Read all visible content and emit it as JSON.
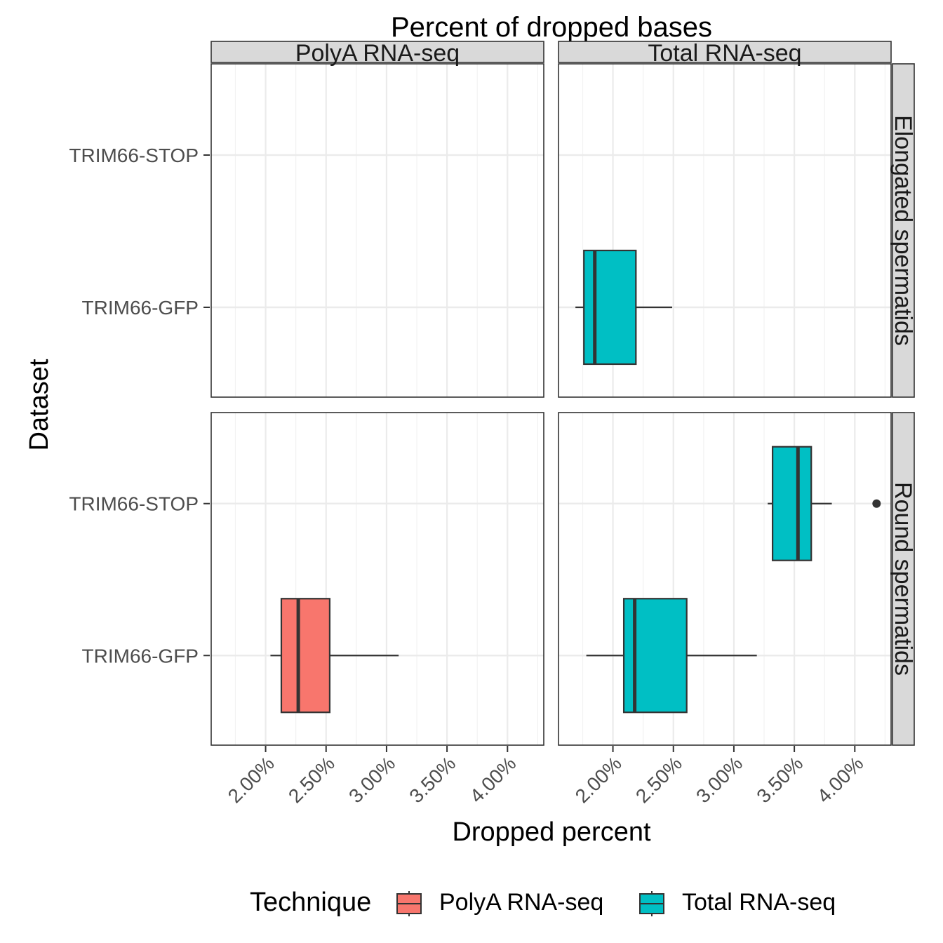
{
  "chart_data": {
    "type": "boxplot",
    "title": "Percent of dropped bases",
    "xlabel": "Dropped percent",
    "ylabel": "Dataset",
    "xlim": [
      1.55,
      4.3
    ],
    "x_ticks": [
      2.0,
      2.5,
      3.0,
      3.5,
      4.0
    ],
    "x_tick_labels": [
      "2.00%",
      "2.50%",
      "3.00%",
      "3.50%",
      "4.00%"
    ],
    "y_categories": [
      "TRIM66-STOP",
      "TRIM66-GFP"
    ],
    "facet_cols": [
      "PolyA RNA-seq",
      "Total RNA-seq"
    ],
    "facet_rows": [
      "Elongated spermatids",
      "Round spermatids"
    ],
    "grid": true,
    "legend": {
      "title": "Technique",
      "position": "bottom",
      "items": [
        {
          "label": "PolyA RNA-seq",
          "color": "#F8766D"
        },
        {
          "label": "Total RNA-seq",
          "color": "#00BFC4"
        }
      ]
    },
    "boxes": [
      {
        "col": 1,
        "row": 0,
        "category": "TRIM66-GFP",
        "technique": "Total RNA-seq",
        "color": "#00BFC4",
        "whisker_low": 1.69,
        "q1": 1.76,
        "median": 1.85,
        "q3": 2.19,
        "whisker_high": 2.49,
        "outliers": []
      },
      {
        "col": 0,
        "row": 1,
        "category": "TRIM66-GFP",
        "technique": "PolyA RNA-seq",
        "color": "#F8766D",
        "whisker_low": 2.04,
        "q1": 2.13,
        "median": 2.27,
        "q3": 2.53,
        "whisker_high": 3.1,
        "outliers": []
      },
      {
        "col": 1,
        "row": 1,
        "category": "TRIM66-STOP",
        "technique": "Total RNA-seq",
        "color": "#00BFC4",
        "whisker_low": 3.28,
        "q1": 3.32,
        "median": 3.53,
        "q3": 3.64,
        "whisker_high": 3.81,
        "outliers": [
          4.18
        ]
      },
      {
        "col": 1,
        "row": 1,
        "category": "TRIM66-GFP",
        "technique": "Total RNA-seq",
        "color": "#00BFC4",
        "whisker_low": 1.78,
        "q1": 2.09,
        "median": 2.18,
        "q3": 2.61,
        "whisker_high": 3.19,
        "outliers": []
      }
    ]
  }
}
